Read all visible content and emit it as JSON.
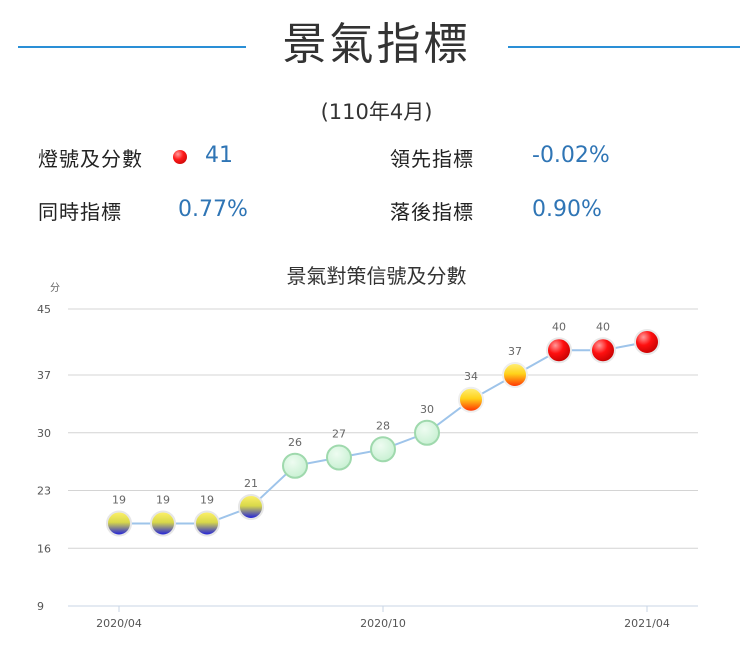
{
  "header": {
    "title": "景氣指標",
    "period": "(110年4月)"
  },
  "stats": {
    "signal_label": "燈號及分數",
    "signal_score": "41",
    "leading_label": "領先指標",
    "leading_value": "-0.02%",
    "coincident_label": "同時指標",
    "coincident_value": "0.77%",
    "lagging_label": "落後指標",
    "lagging_value": "0.90%"
  },
  "colors": {
    "accent_line": "#2a8fd6",
    "value_text": "#2f75b5",
    "series_line": "#9ec4ea",
    "red_light": "#ff1a1a",
    "yellow_red_light": "#ffd21a",
    "green_light": "#c8f2d2",
    "yellow_blue_light": "#2a2ae0"
  },
  "chart_data": {
    "type": "line",
    "title": "景氣對策信號及分數",
    "ylabel": "分",
    "yticks": [
      9,
      16,
      23,
      30,
      37,
      45
    ],
    "ylim": [
      9,
      45
    ],
    "xtick_labels": [
      "2020/04",
      "2020/10",
      "2021/04"
    ],
    "x": [
      "2020/04",
      "2020/05",
      "2020/06",
      "2020/07",
      "2020/08",
      "2020/09",
      "2020/10",
      "2020/11",
      "2020/12",
      "2021/01",
      "2021/02",
      "2021/03",
      "2021/04"
    ],
    "values": [
      19,
      19,
      19,
      21,
      26,
      27,
      28,
      30,
      34,
      37,
      40,
      40,
      41
    ],
    "lights": [
      "yellow-blue",
      "yellow-blue",
      "yellow-blue",
      "yellow-blue",
      "green",
      "green",
      "green",
      "green",
      "yellow-red",
      "yellow-red",
      "red",
      "red",
      "red"
    ],
    "data_labels": [
      "19",
      "19",
      "19",
      "21",
      "26",
      "27",
      "28",
      "30",
      "34",
      "37",
      "40",
      "40",
      ""
    ],
    "grid": true,
    "legend": "none"
  }
}
